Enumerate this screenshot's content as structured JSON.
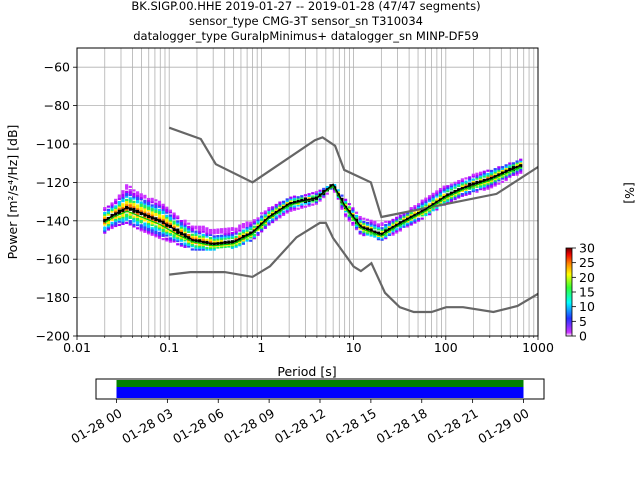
{
  "title_lines": [
    "BK.SIGP.00.HHE   2019-01-27 -- 2019-01-28  (47/47 segments)",
    "sensor_type CMG-3T sensor_sn T310034",
    "datalogger_type GuralpMinimus+ datalogger_sn MINP-DF59"
  ],
  "chart_data": {
    "type": "heatmap",
    "xlabel": "Period [s]",
    "ylabel": "Power [m²/s⁴/Hz] [dB]",
    "x_scale": "log",
    "xlim": [
      0.01,
      1000
    ],
    "ylim": [
      -200,
      -50
    ],
    "x_ticks": [
      0.01,
      0.1,
      1,
      10,
      100,
      1000
    ],
    "x_tick_labels": [
      "0.01",
      "0.1",
      "1",
      "10",
      "100",
      "1000"
    ],
    "y_ticks": [
      -200,
      -180,
      -160,
      -140,
      -120,
      -100,
      -80,
      -60
    ],
    "grid": true,
    "colorbar": {
      "label": "[%]",
      "range": [
        0,
        30
      ],
      "ticks": [
        0,
        5,
        10,
        15,
        20,
        25,
        30
      ],
      "colors": [
        "#ffffff",
        "#cc33ff",
        "#2233ff",
        "#00ffff",
        "#33ff33",
        "#ffff00",
        "#ff8800",
        "#ee0000",
        "#660000"
      ]
    },
    "noise_models": [
      {
        "name": "NHNM",
        "color": "#666666",
        "x": [
          0.1,
          0.22,
          0.32,
          0.8,
          3.8,
          4.6,
          6.3,
          7.9,
          15.4,
          20,
          354.8,
          1000
        ],
        "y": [
          -91.5,
          -97.4,
          -110.5,
          -120,
          -98,
          -96.5,
          -101,
          -113.5,
          -120,
          -138,
          -126,
          -112
        ]
      },
      {
        "name": "NLNM",
        "color": "#666666",
        "x": [
          0.1,
          0.17,
          0.4,
          0.8,
          1.24,
          2.4,
          4.3,
          5,
          6,
          10,
          12,
          15.6,
          21.9,
          31.6,
          45,
          70,
          101,
          154,
          328,
          600,
          1000
        ],
        "y": [
          -168,
          -166.7,
          -166.7,
          -169.2,
          -163.7,
          -148.6,
          -141.1,
          -141.1,
          -149,
          -163.8,
          -166.2,
          -162.1,
          -177.5,
          -185,
          -187.5,
          -187.5,
          -185,
          -185,
          -187.5,
          -184.4,
          -178
        ]
      }
    ],
    "mode_curve": {
      "name": "mode",
      "color": "#000000",
      "x": [
        0.02,
        0.025,
        0.035,
        0.05,
        0.08,
        0.12,
        0.18,
        0.3,
        0.5,
        0.8,
        1.2,
        2,
        4,
        6,
        8,
        12,
        20,
        25,
        35,
        60,
        100,
        150,
        300,
        650
      ],
      "y": [
        -140,
        -137,
        -133,
        -136,
        -140,
        -145,
        -150,
        -152,
        -151,
        -146,
        -138,
        -131,
        -128,
        -121,
        -132,
        -143,
        -147,
        -144,
        -140,
        -134,
        -127,
        -123,
        -118,
        -111
      ]
    },
    "mean_curve": {
      "name": "mean",
      "color": "#00cc00",
      "x": [
        0.02,
        0.025,
        0.035,
        0.05,
        0.08,
        0.12,
        0.18,
        0.3,
        0.5,
        0.8,
        1.2,
        2,
        4,
        6,
        8,
        12,
        20,
        25,
        35,
        60,
        100,
        150,
        300,
        650
      ],
      "y": [
        -141,
        -138,
        -135,
        -138,
        -142,
        -147,
        -151,
        -153,
        -152,
        -147,
        -139,
        -132,
        -128,
        -122,
        -133,
        -144,
        -148,
        -145,
        -141,
        -135,
        -128,
        -124,
        -119,
        -112
      ]
    },
    "psd_band": {
      "x": [
        0.02,
        0.025,
        0.035,
        0.05,
        0.08,
        0.12,
        0.18,
        0.3,
        0.5,
        0.8,
        1.2,
        2,
        4,
        6,
        8,
        12,
        20,
        25,
        35,
        60,
        100,
        150,
        300,
        650
      ],
      "upper": [
        -133,
        -130,
        -121,
        -126,
        -130,
        -137,
        -142,
        -144,
        -143,
        -140,
        -133,
        -128,
        -125,
        -120,
        -128,
        -138,
        -141,
        -140,
        -136,
        -128,
        -121,
        -118,
        -113,
        -108
      ],
      "lower": [
        -147,
        -143,
        -141,
        -145,
        -149,
        -152,
        -155,
        -155,
        -154,
        -150,
        -142,
        -135,
        -131,
        -123,
        -137,
        -147,
        -150,
        -148,
        -144,
        -138,
        -131,
        -127,
        -123,
        -115
      ]
    }
  },
  "timeline": {
    "tick_labels": [
      "01-28 00",
      "01-28 03",
      "01-28 06",
      "01-28 09",
      "01-28 12",
      "01-28 15",
      "01-28 18",
      "01-28 21",
      "01-29 00"
    ],
    "green_color": "#008000",
    "blue_color": "#0000ff"
  }
}
